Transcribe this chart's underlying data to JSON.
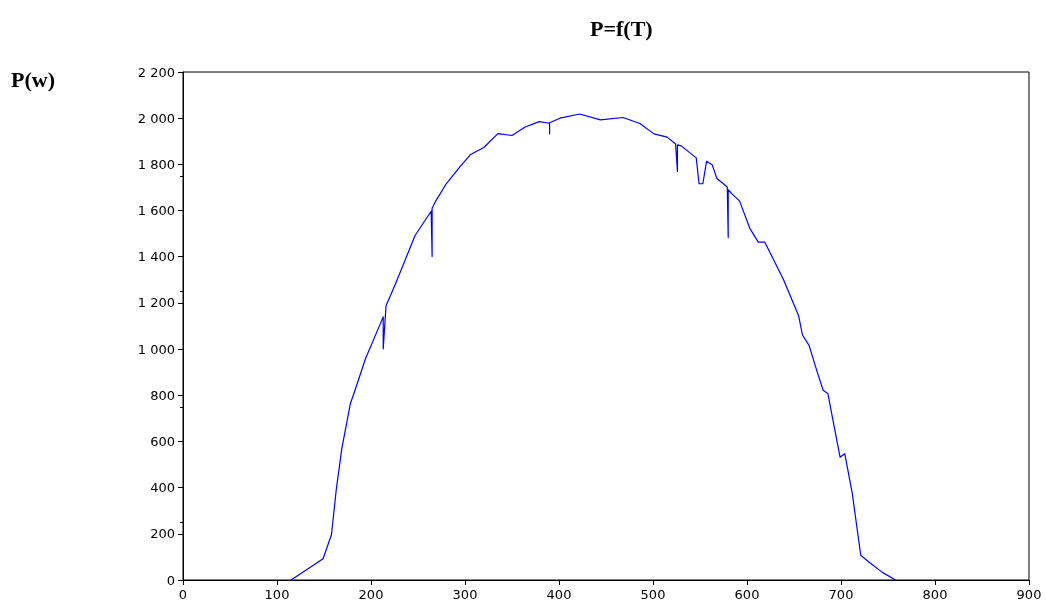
{
  "chart_data": {
    "type": "line",
    "title": "P=f(T)",
    "ylabel": "P(w)",
    "series": [
      {
        "color": "#0000ff",
        "x": [
          115,
          149,
          158,
          163,
          169,
          178,
          183,
          194,
          211,
          213,
          213,
          216,
          227,
          247,
          264,
          265,
          265,
          269,
          280,
          295,
          306,
          320,
          335,
          350,
          364,
          379,
          390,
          390,
          390,
          401,
          422,
          444,
          468,
          486,
          501,
          515,
          524,
          526,
          526,
          530,
          546,
          549,
          553,
          557,
          563,
          568,
          579,
          580,
          580,
          584,
          592,
          603,
          612,
          619,
          639,
          655,
          659,
          666,
          675,
          681,
          686,
          693,
          699,
          704,
          712,
          721,
          730,
          744,
          758
        ],
        "values": [
          0,
          92,
          197,
          390,
          570,
          763,
          822,
          957,
          1120,
          1140,
          1001,
          1188,
          1292,
          1493,
          1597,
          1401,
          1610,
          1642,
          1716,
          1791,
          1843,
          1873,
          1933,
          1925,
          1962,
          1985,
          1978,
          1932,
          1980,
          2000,
          2018,
          1993,
          2003,
          1977,
          1932,
          1918,
          1888,
          1769,
          1885,
          1880,
          1828,
          1716,
          1716,
          1813,
          1798,
          1739,
          1702,
          1483,
          1690,
          1672,
          1642,
          1523,
          1463,
          1463,
          1299,
          1143,
          1061,
          1016,
          897,
          822,
          808,
          659,
          532,
          547,
          375,
          107,
          77,
          33,
          0
        ]
      }
    ],
    "xlim": [
      0,
      900
    ],
    "xticks": [
      0,
      100,
      200,
      300,
      400,
      500,
      600,
      700,
      800,
      900
    ],
    "ylim": [
      0,
      2200
    ],
    "yticks": [
      0,
      200,
      400,
      600,
      800,
      {
        "value": 1000,
        "label": "1 000"
      },
      {
        "value": 1200,
        "label": "1 200"
      },
      {
        "value": 1400,
        "label": "1 400"
      },
      {
        "value": 1600,
        "label": "1 600"
      },
      {
        "value": 1800,
        "label": "1 800"
      },
      {
        "value": 2000,
        "label": "2 000"
      },
      {
        "value": 2200,
        "label": "2 200"
      }
    ],
    "grid": false,
    "marker": "none",
    "line_style": "solid"
  }
}
